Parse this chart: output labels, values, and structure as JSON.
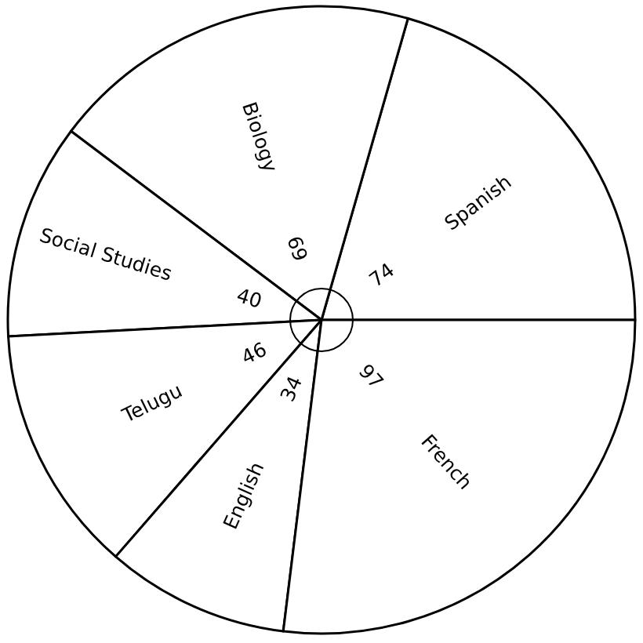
{
  "chart_data": {
    "type": "pie",
    "categories": [
      "Spanish",
      "Biology",
      "Social Studies",
      "Telugu",
      "English",
      "French"
    ],
    "values": [
      74,
      69,
      40,
      46,
      34,
      97
    ],
    "colors": [
      "#ffffff",
      "#ffffff",
      "#ffffff",
      "#ffffff",
      "#ffffff",
      "#ffffff"
    ],
    "data_labels": true
  }
}
